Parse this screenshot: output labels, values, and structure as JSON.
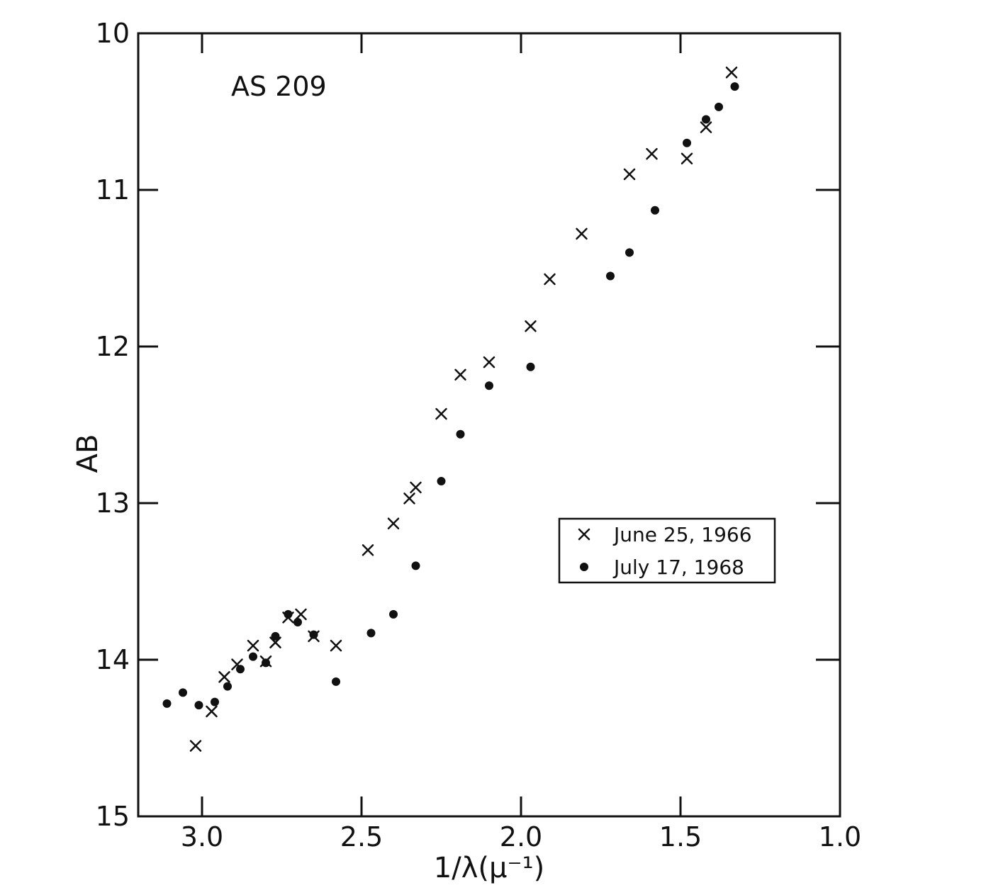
{
  "chart_data": {
    "type": "scatter",
    "title": "AS 209",
    "xlabel": "1/λ(μ⁻¹)",
    "ylabel": "AB",
    "xlim": [
      3.2,
      1.0
    ],
    "ylim": [
      10,
      15
    ],
    "x_reversed": true,
    "y_inverted": true,
    "x_ticks": [
      3.0,
      2.5,
      2.0,
      1.5,
      1.0
    ],
    "x_tick_labels": [
      "3.0",
      "2.5",
      "2.0",
      "1.5",
      "1.0"
    ],
    "y_ticks": [
      10,
      11,
      12,
      13,
      14,
      15
    ],
    "y_tick_labels": [
      "10",
      "11",
      "12",
      "13",
      "14",
      "15"
    ],
    "grid": false,
    "legend_position": "center-right",
    "series": [
      {
        "name": "June 25, 1966",
        "marker": "x",
        "color": "#111111",
        "x": [
          3.02,
          2.97,
          2.93,
          2.89,
          2.84,
          2.8,
          2.77,
          2.73,
          2.69,
          2.65,
          2.58,
          2.48,
          2.4,
          2.35,
          2.33,
          2.25,
          2.19,
          2.1,
          1.97,
          1.91,
          1.81,
          1.66,
          1.59,
          1.48,
          1.42,
          1.34
        ],
        "y": [
          14.55,
          14.33,
          14.11,
          14.03,
          13.91,
          14.01,
          13.89,
          13.73,
          13.71,
          13.85,
          13.91,
          13.3,
          13.13,
          12.97,
          12.9,
          12.43,
          12.18,
          12.1,
          11.87,
          11.57,
          11.28,
          10.9,
          10.77,
          10.8,
          10.6,
          10.25
        ]
      },
      {
        "name": "July 17, 1968",
        "marker": "dot",
        "color": "#111111",
        "x": [
          3.11,
          3.06,
          3.01,
          2.96,
          2.92,
          2.88,
          2.84,
          2.8,
          2.77,
          2.73,
          2.7,
          2.65,
          2.58,
          2.47,
          2.4,
          2.33,
          2.25,
          2.19,
          2.1,
          1.97,
          1.72,
          1.66,
          1.58,
          1.48,
          1.42,
          1.38,
          1.33
        ],
        "y": [
          14.28,
          14.21,
          14.29,
          14.27,
          14.17,
          14.06,
          13.98,
          14.02,
          13.85,
          13.71,
          13.76,
          13.84,
          14.14,
          13.83,
          13.71,
          13.4,
          12.86,
          12.56,
          12.25,
          12.13,
          11.55,
          11.4,
          11.13,
          10.7,
          10.55,
          10.47,
          10.34
        ]
      }
    ]
  }
}
